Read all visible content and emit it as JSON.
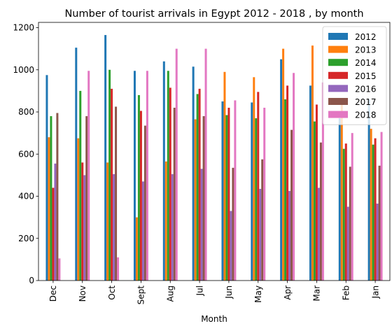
{
  "chart_data": {
    "type": "bar",
    "title": "Number of tourist arrivals in Egypt 2012 - 2018 , by month",
    "xlabel": "Month",
    "ylabel": "",
    "ylim": [
      0,
      1225
    ],
    "yticks": [
      0,
      200,
      400,
      600,
      800,
      1000,
      1200
    ],
    "grid": false,
    "legend_position": "top-right",
    "categories": [
      "Dec",
      "Nov",
      "Oct",
      "Sept",
      "Aug",
      "Jul",
      "Jun",
      "May",
      "Apr",
      "Mar",
      "Feb",
      "Jan"
    ],
    "series": [
      {
        "name": "2012",
        "color": "#1f77b4",
        "values": [
          975,
          1105,
          1165,
          995,
          1040,
          1015,
          850,
          845,
          1050,
          925,
          770,
          860
        ]
      },
      {
        "name": "2013",
        "color": "#ff7f0e",
        "values": [
          680,
          675,
          560,
          300,
          565,
          765,
          990,
          965,
          1100,
          1115,
          840,
          720
        ]
      },
      {
        "name": "2014",
        "color": "#2ca02c",
        "values": [
          780,
          900,
          1000,
          880,
          995,
          885,
          785,
          770,
          860,
          755,
          625,
          645
        ]
      },
      {
        "name": "2015",
        "color": "#d62728",
        "values": [
          440,
          560,
          910,
          805,
          915,
          910,
          820,
          895,
          925,
          835,
          650,
          675
        ]
      },
      {
        "name": "2016",
        "color": "#9467bd",
        "values": [
          555,
          500,
          505,
          470,
          505,
          530,
          330,
          435,
          425,
          440,
          350,
          365
        ]
      },
      {
        "name": "2017",
        "color": "#8c564b",
        "values": [
          795,
          780,
          825,
          735,
          820,
          780,
          535,
          575,
          715,
          655,
          540,
          545
        ]
      },
      {
        "name": "2018",
        "color": "#e377c2",
        "values": [
          105,
          995,
          110,
          995,
          1100,
          1100,
          855,
          820,
          985,
          940,
          700,
          705
        ]
      }
    ]
  }
}
